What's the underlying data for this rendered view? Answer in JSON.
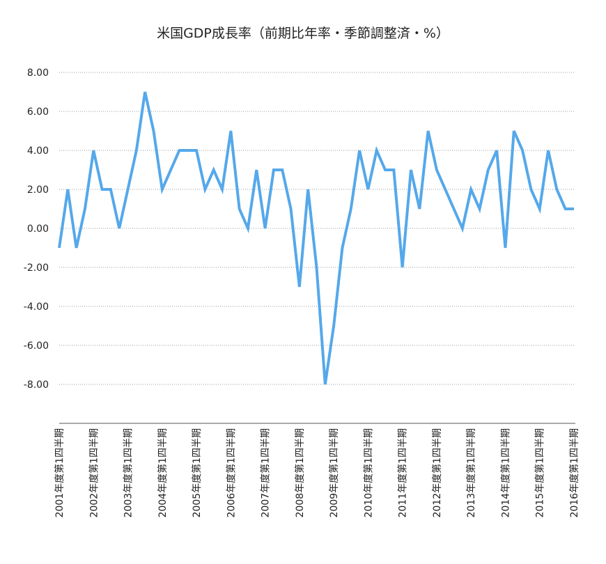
{
  "chart_data": {
    "type": "line",
    "title": "米国GDP成長率（前期比年率・季節調整済・%）",
    "categories": [
      "2001年度第1四半期",
      null,
      null,
      null,
      "2002年度第1四半期",
      null,
      null,
      null,
      "2003年度第1四半期",
      null,
      null,
      null,
      "2004年度第1四半期",
      null,
      null,
      null,
      "2005年度第1四半期",
      null,
      null,
      null,
      "2006年度第1四半期",
      null,
      null,
      null,
      "2007年度第1四半期",
      null,
      null,
      null,
      "2008年度第1四半期",
      null,
      null,
      null,
      "2009年度第1四半期",
      null,
      null,
      null,
      "2010年度第1四半期",
      null,
      null,
      null,
      "2011年度第1四半期",
      null,
      null,
      null,
      "2012年度第1四半期",
      null,
      null,
      null,
      "2013年度第1四半期",
      null,
      null,
      null,
      "2014年度第1四半期",
      null,
      null,
      null,
      "2015年度第1四半期",
      null,
      null,
      null,
      "2016年度第1四半期"
    ],
    "series": [
      {
        "color": "#55a8ea",
        "values": [
          -1,
          2,
          -1,
          1,
          4,
          2,
          2,
          0,
          2,
          4,
          7,
          5,
          2,
          3,
          4,
          4,
          4,
          2,
          3,
          2,
          5,
          1,
          0,
          3,
          0,
          3,
          3,
          1,
          -3,
          2,
          -2,
          -8,
          -5,
          -1,
          1,
          4,
          2,
          4,
          3,
          3,
          -2,
          3,
          1,
          5,
          3,
          2,
          1,
          0,
          2,
          1,
          3,
          4,
          -1,
          5,
          4,
          2,
          1,
          4,
          2,
          1,
          1
        ]
      }
    ],
    "ylim": [
      -10,
      8
    ],
    "yticks": [
      {
        "value": -8,
        "label": "-8.00"
      },
      {
        "value": -6,
        "label": "-6.00"
      },
      {
        "value": -4,
        "label": "-4.00"
      },
      {
        "value": -2,
        "label": "-2.00"
      },
      {
        "value": 0,
        "label": "0.00"
      },
      {
        "value": 2,
        "label": "2.00"
      },
      {
        "value": 4,
        "label": "4.00"
      },
      {
        "value": 6,
        "label": "6.00"
      },
      {
        "value": 8,
        "label": "8.00"
      }
    ],
    "grid": true
  }
}
